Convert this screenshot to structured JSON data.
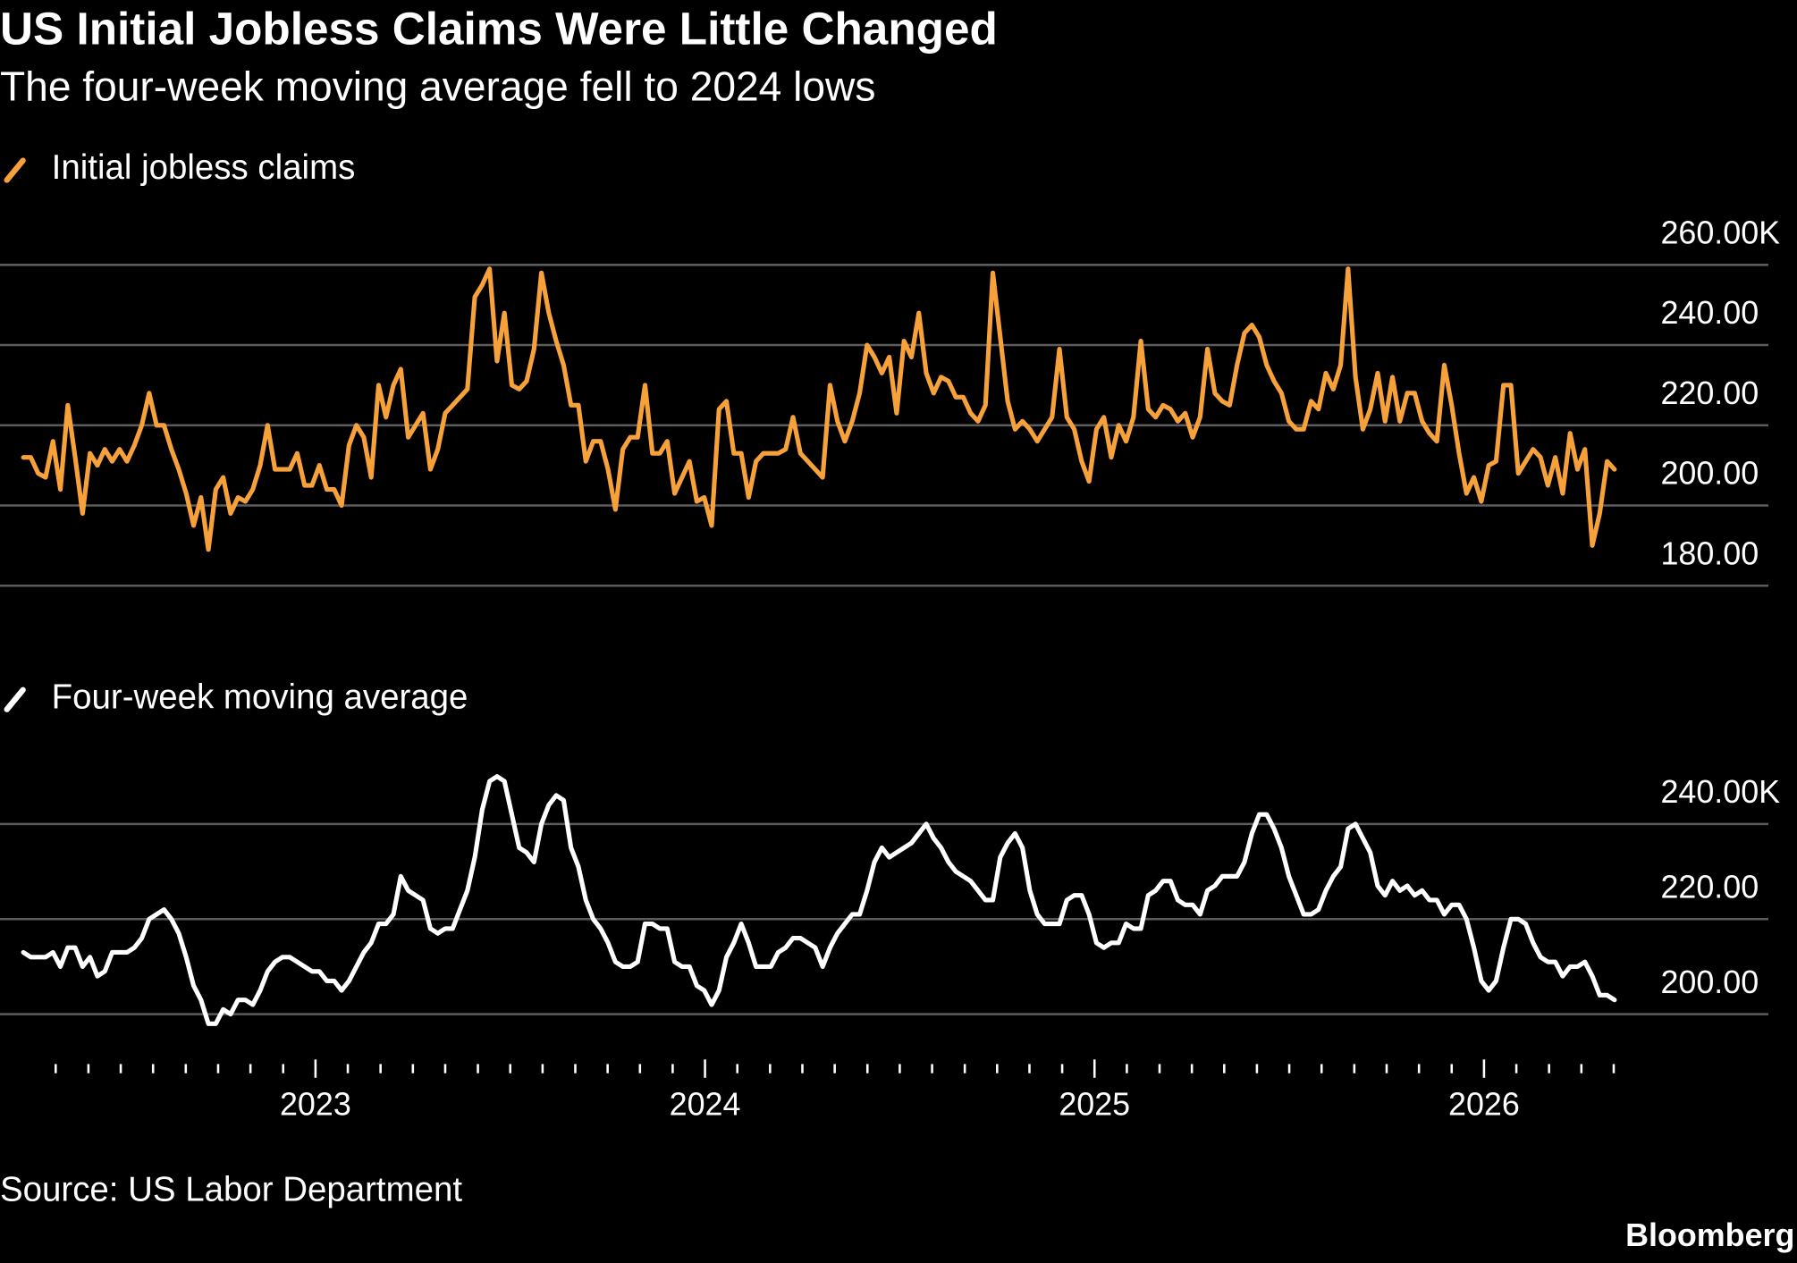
{
  "title": "US Initial Jobless Claims Were Little Changed",
  "subtitle": "The four-week moving average fell to 2024 lows",
  "source": "Source: US Labor Department",
  "logo": "Bloomberg",
  "chart_data": [
    {
      "type": "line",
      "x": [
        2022.25,
        2022.269,
        2022.288,
        2022.307,
        2022.326,
        2022.345,
        2022.364,
        2022.383,
        2022.402,
        2022.421,
        2022.44,
        2022.459,
        2022.478,
        2022.497,
        2022.516,
        2022.535,
        2022.554,
        2022.573,
        2022.592,
        2022.611,
        2022.63,
        2022.649,
        2022.668,
        2022.687,
        2022.706,
        2022.725,
        2022.744,
        2022.763,
        2022.782,
        2022.801,
        2022.82,
        2022.839,
        2022.858,
        2022.877,
        2022.896,
        2022.915,
        2022.934,
        2022.953,
        2022.972,
        2022.991,
        2023.01,
        2023.029,
        2023.048,
        2023.067,
        2023.086,
        2023.105,
        2023.124,
        2023.143,
        2023.162,
        2023.181,
        2023.2,
        2023.219,
        2023.238,
        2023.257,
        2023.276,
        2023.295,
        2023.314,
        2023.333,
        2023.352,
        2023.371,
        2023.39,
        2023.409,
        2023.428,
        2023.447,
        2023.466,
        2023.485,
        2023.504,
        2023.523,
        2023.542,
        2023.561,
        2023.58,
        2023.599,
        2023.618,
        2023.637,
        2023.656,
        2023.675,
        2023.694,
        2023.713,
        2023.732,
        2023.751,
        2023.77,
        2023.789,
        2023.808,
        2023.827,
        2023.846,
        2023.865,
        2023.884,
        2023.903,
        2023.922,
        2023.941,
        2023.96,
        2023.979,
        2023.998,
        2024.017,
        2024.036,
        2024.055,
        2024.074,
        2024.093,
        2024.112,
        2024.131,
        2024.15,
        2024.169,
        2024.188,
        2024.207,
        2024.226,
        2024.245,
        2024.264,
        2024.283,
        2024.302,
        2024.321,
        2024.34,
        2024.359,
        2024.378,
        2024.397,
        2024.416,
        2024.435,
        2024.454,
        2024.473,
        2024.492,
        2024.511,
        2024.53,
        2024.549,
        2024.568,
        2024.587,
        2024.606,
        2024.625,
        2024.644,
        2024.663,
        2024.682,
        2024.701,
        2024.72,
        2024.739,
        2024.758,
        2024.777,
        2024.796,
        2024.815,
        2024.834,
        2024.853,
        2024.872,
        2024.891,
        2024.91,
        2024.929,
        2024.948,
        2024.967,
        2024.986,
        2025.005,
        2025.024,
        2025.043,
        2025.062,
        2025.081,
        2025.1,
        2025.119,
        2025.138,
        2025.157,
        2025.176,
        2025.195,
        2025.214,
        2025.233,
        2025.252,
        2025.271,
        2025.29,
        2025.309,
        2025.328,
        2025.347,
        2025.366,
        2025.385,
        2025.404,
        2025.423,
        2025.442,
        2025.461,
        2025.48,
        2025.499,
        2025.518,
        2025.537,
        2025.556,
        2025.575,
        2025.594,
        2025.613,
        2025.632,
        2025.651,
        2025.67,
        2025.689,
        2025.708,
        2025.727,
        2025.746,
        2025.765,
        2025.784,
        2025.803,
        2025.822,
        2025.841,
        2025.86,
        2025.879,
        2025.898,
        2025.917,
        2025.936,
        2025.955,
        2025.974,
        2025.993,
        2026.012,
        2026.031,
        2026.05,
        2026.069,
        2026.088,
        2026.107,
        2026.126,
        2026.145,
        2026.164,
        2026.183,
        2026.202,
        2026.221,
        2026.24,
        2026.259,
        2026.278,
        2026.297,
        2026.316,
        2026.335
      ],
      "series": [
        {
          "name": "Initial jobless claims",
          "color": "#f7a13a",
          "values": [
            212,
            212,
            208,
            207,
            216,
            204,
            225,
            212,
            198,
            213,
            210,
            214,
            211,
            214,
            211,
            215,
            220,
            228,
            220,
            220,
            214,
            209,
            203,
            195,
            202,
            189,
            204,
            207,
            198,
            202,
            201,
            204,
            210,
            220,
            209,
            209,
            209,
            213,
            205,
            205,
            210,
            204,
            204,
            200,
            215,
            220,
            217,
            207,
            230,
            222,
            230,
            234,
            217,
            220,
            223,
            209,
            214,
            223,
            225,
            227,
            229,
            252,
            255,
            259,
            236,
            248,
            230,
            229,
            231,
            239,
            258,
            248,
            241,
            235,
            225,
            225,
            211,
            216,
            216,
            209,
            199,
            214,
            217,
            217,
            230,
            213,
            213,
            216,
            203,
            207,
            211,
            201,
            202,
            195,
            224,
            226,
            213,
            213,
            202,
            211,
            213,
            213,
            213,
            214,
            222,
            213,
            211,
            209,
            207,
            230,
            221,
            216,
            221,
            228,
            240,
            237,
            233,
            237,
            223,
            241,
            237,
            248,
            233,
            228,
            232,
            231,
            227,
            227,
            223,
            221,
            225,
            258,
            242,
            226,
            219,
            221,
            219,
            216,
            219,
            222,
            239,
            222,
            219,
            211,
            206,
            219,
            222,
            212,
            220,
            216,
            222,
            241,
            224,
            222,
            225,
            224,
            221,
            223,
            217,
            222,
            239,
            228,
            226,
            225,
            235,
            243,
            245,
            242,
            235,
            231,
            228,
            221,
            219,
            219,
            226,
            224,
            233,
            229,
            235,
            259,
            232,
            219,
            224,
            233,
            221,
            232,
            221,
            228,
            228,
            221,
            218,
            216,
            235,
            225,
            213,
            203,
            207,
            201,
            210,
            211,
            230,
            230,
            208,
            211,
            214,
            212,
            205,
            212,
            203,
            218,
            209,
            214,
            190,
            198,
            211,
            209
          ]
        }
      ],
      "xlim": [
        2022.19,
        2026.73
      ],
      "ylim": [
        180,
        260
      ],
      "yticks": [
        {
          "value": 180,
          "label": "180.00"
        },
        {
          "value": 200,
          "label": "200.00"
        },
        {
          "value": 220,
          "label": "220.00"
        },
        {
          "value": 240,
          "label": "240.00"
        },
        {
          "value": 260,
          "label": "260.00K"
        }
      ],
      "grid": true,
      "legend": "top-left"
    },
    {
      "type": "line",
      "x": [
        2022.25,
        2022.269,
        2022.288,
        2022.307,
        2022.326,
        2022.345,
        2022.364,
        2022.383,
        2022.402,
        2022.421,
        2022.44,
        2022.459,
        2022.478,
        2022.497,
        2022.516,
        2022.535,
        2022.554,
        2022.573,
        2022.592,
        2022.611,
        2022.63,
        2022.649,
        2022.668,
        2022.687,
        2022.706,
        2022.725,
        2022.744,
        2022.763,
        2022.782,
        2022.801,
        2022.82,
        2022.839,
        2022.858,
        2022.877,
        2022.896,
        2022.915,
        2022.934,
        2022.953,
        2022.972,
        2022.991,
        2023.01,
        2023.029,
        2023.048,
        2023.067,
        2023.086,
        2023.105,
        2023.124,
        2023.143,
        2023.162,
        2023.181,
        2023.2,
        2023.219,
        2023.238,
        2023.257,
        2023.276,
        2023.295,
        2023.314,
        2023.333,
        2023.352,
        2023.371,
        2023.39,
        2023.409,
        2023.428,
        2023.447,
        2023.466,
        2023.485,
        2023.504,
        2023.523,
        2023.542,
        2023.561,
        2023.58,
        2023.599,
        2023.618,
        2023.637,
        2023.656,
        2023.675,
        2023.694,
        2023.713,
        2023.732,
        2023.751,
        2023.77,
        2023.789,
        2023.808,
        2023.827,
        2023.846,
        2023.865,
        2023.884,
        2023.903,
        2023.922,
        2023.941,
        2023.96,
        2023.979,
        2023.998,
        2024.017,
        2024.036,
        2024.055,
        2024.074,
        2024.093,
        2024.112,
        2024.131,
        2024.15,
        2024.169,
        2024.188,
        2024.207,
        2024.226,
        2024.245,
        2024.264,
        2024.283,
        2024.302,
        2024.321,
        2024.34,
        2024.359,
        2024.378,
        2024.397,
        2024.416,
        2024.435,
        2024.454,
        2024.473,
        2024.492,
        2024.511,
        2024.53,
        2024.549,
        2024.568,
        2024.587,
        2024.606,
        2024.625,
        2024.644,
        2024.663,
        2024.682,
        2024.701,
        2024.72,
        2024.739,
        2024.758,
        2024.777,
        2024.796,
        2024.815,
        2024.834,
        2024.853,
        2024.872,
        2024.891,
        2024.91,
        2024.929,
        2024.948,
        2024.967,
        2024.986,
        2025.005,
        2025.024,
        2025.043,
        2025.062,
        2025.081,
        2025.1,
        2025.119,
        2025.138,
        2025.157,
        2025.176,
        2025.195,
        2025.214,
        2025.233,
        2025.252,
        2025.271,
        2025.29,
        2025.309,
        2025.328,
        2025.347,
        2025.366,
        2025.385,
        2025.404,
        2025.423,
        2025.442,
        2025.461,
        2025.48,
        2025.499,
        2025.518,
        2025.537,
        2025.556,
        2025.575,
        2025.594,
        2025.613,
        2025.632,
        2025.651,
        2025.67,
        2025.689,
        2025.708,
        2025.727,
        2025.746,
        2025.765,
        2025.784,
        2025.803,
        2025.822,
        2025.841,
        2025.86,
        2025.879,
        2025.898,
        2025.917,
        2025.936,
        2025.955,
        2025.974,
        2025.993,
        2026.012,
        2026.031,
        2026.05,
        2026.069,
        2026.088,
        2026.107,
        2026.126,
        2026.145,
        2026.164,
        2026.183,
        2026.202,
        2026.221,
        2026.24,
        2026.259,
        2026.278,
        2026.297,
        2026.316,
        2026.335
      ],
      "series": [
        {
          "name": "Four-week moving average",
          "color": "#ffffff",
          "values": [
            213,
            212,
            212,
            212,
            213,
            210,
            214,
            214,
            210,
            212,
            208,
            209,
            213,
            213,
            213,
            214,
            216,
            220,
            221,
            222,
            220,
            217,
            212,
            206,
            203,
            198,
            198,
            201,
            200,
            203,
            203,
            202,
            205,
            209,
            211,
            212,
            212,
            211,
            210,
            209,
            209,
            207,
            207,
            205,
            207,
            210,
            213,
            215,
            219,
            219,
            221,
            229,
            226,
            225,
            224,
            218,
            217,
            218,
            218,
            222,
            226,
            233,
            243,
            249,
            250,
            249,
            242,
            235,
            234,
            232,
            240,
            244,
            246,
            245,
            235,
            231,
            224,
            220,
            218,
            215,
            211,
            210,
            210,
            211,
            219,
            219,
            218,
            218,
            211,
            210,
            210,
            206,
            205,
            202,
            205,
            212,
            215,
            219,
            215,
            210,
            210,
            210,
            213,
            214,
            216,
            216,
            215,
            214,
            210,
            214,
            217,
            219,
            221,
            221,
            226,
            232,
            235,
            233,
            234,
            235,
            236,
            238,
            240,
            237,
            235,
            232,
            230,
            229,
            228,
            226,
            224,
            224,
            233,
            236,
            238,
            235,
            226,
            221,
            219,
            219,
            219,
            224,
            225,
            225,
            221,
            215,
            214,
            215,
            215,
            219,
            218,
            218,
            225,
            226,
            228,
            228,
            224,
            223,
            223,
            221,
            226,
            227,
            229,
            229,
            229,
            232,
            238,
            242,
            242,
            239,
            235,
            229,
            225,
            221,
            221,
            222,
            226,
            229,
            231,
            239,
            240,
            237,
            234,
            227,
            225,
            228,
            226,
            227,
            225,
            226,
            224,
            224,
            221,
            223,
            223,
            220,
            214,
            207,
            205,
            207,
            214,
            220,
            220,
            219,
            215,
            212,
            211,
            211,
            208,
            210,
            210,
            211,
            208,
            204,
            204,
            203
          ]
        }
      ],
      "xlim": [
        2022.19,
        2026.73
      ],
      "xticks": [
        2023,
        2024,
        2025,
        2026
      ],
      "xminor_ticks": [
        2022.333,
        2022.417,
        2022.5,
        2022.583,
        2022.667,
        2022.75,
        2022.833,
        2022.917,
        2023.083,
        2023.167,
        2023.25,
        2023.333,
        2023.417,
        2023.5,
        2023.583,
        2023.667,
        2023.75,
        2023.833,
        2023.917,
        2024.083,
        2024.167,
        2024.25,
        2024.333,
        2024.417,
        2024.5,
        2024.583,
        2024.667,
        2024.75,
        2024.833,
        2024.917,
        2025.083,
        2025.167,
        2025.25,
        2025.333,
        2025.417,
        2025.5,
        2025.583,
        2025.667,
        2025.75,
        2025.833,
        2025.917,
        2026.083,
        2026.167,
        2026.25,
        2026.333
      ],
      "ylim": [
        190,
        250
      ],
      "yticks": [
        {
          "value": 200,
          "label": "200.00"
        },
        {
          "value": 220,
          "label": "220.00"
        },
        {
          "value": 240,
          "label": "240.00K"
        }
      ],
      "grid": true,
      "legend": "top-left"
    }
  ]
}
